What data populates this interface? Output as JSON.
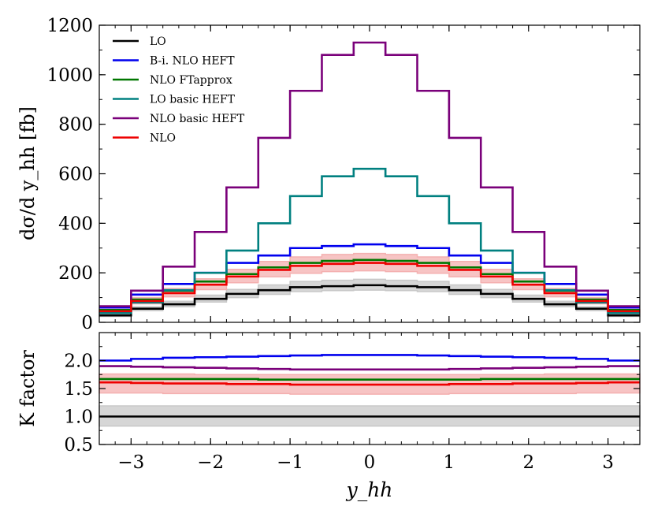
{
  "chart_data": [
    {
      "type": "line",
      "panel": "main",
      "step": "histogram",
      "ylabel": "dσ/d y_hh [fb]",
      "ylim": [
        0,
        1200
      ],
      "xlim": [
        -3.4,
        3.4
      ],
      "yticks": [
        0,
        200,
        400,
        600,
        800,
        1000,
        1200
      ],
      "ytick_labels": [
        "0",
        "200",
        "400",
        "600",
        "800",
        "1000",
        "1200"
      ],
      "legend": "top-left",
      "bin_edges": [
        -3.4,
        -3.0,
        -2.6,
        -2.2,
        -1.8,
        -1.4,
        -1.0,
        -0.6,
        -0.2,
        0.2,
        0.6,
        1.0,
        1.4,
        1.8,
        2.2,
        2.6,
        3.0,
        3.4
      ],
      "series": [
        {
          "name": "LO",
          "color": "#000000",
          "values": [
            28,
            55,
            73,
            95,
            115,
            130,
            142,
            146,
            150,
            146,
            142,
            130,
            115,
            95,
            73,
            55,
            28
          ],
          "band": [
            [
              24,
              33
            ],
            [
              47,
              63
            ],
            [
              63,
              85
            ],
            [
              82,
              110
            ],
            [
              100,
              133
            ],
            [
              113,
              151
            ],
            [
              124,
              165
            ],
            [
              128,
              170
            ],
            [
              130,
              174
            ],
            [
              128,
              170
            ],
            [
              124,
              165
            ],
            [
              113,
              151
            ],
            [
              100,
              133
            ],
            [
              82,
              110
            ],
            [
              63,
              85
            ],
            [
              47,
              63
            ],
            [
              24,
              33
            ]
          ],
          "band_color": "#c8c8c8"
        },
        {
          "name": "B-i. NLO HEFT",
          "color": "#0000ee",
          "values": [
            60,
            112,
            155,
            200,
            240,
            270,
            300,
            308,
            315,
            308,
            300,
            270,
            240,
            200,
            155,
            112,
            60
          ]
        },
        {
          "name": "NLO FTapprox",
          "color": "#007700",
          "values": [
            50,
            92,
            128,
            165,
            195,
            222,
            240,
            248,
            252,
            248,
            240,
            222,
            195,
            165,
            128,
            92,
            50
          ]
        },
        {
          "name": "LO basic HEFT",
          "color": "#008080",
          "values": [
            38,
            80,
            130,
            200,
            290,
            400,
            510,
            590,
            620,
            590,
            510,
            400,
            290,
            200,
            130,
            80,
            38
          ]
        },
        {
          "name": "NLO basic HEFT",
          "color": "#7a007a",
          "values": [
            65,
            128,
            225,
            365,
            545,
            745,
            935,
            1080,
            1130,
            1080,
            935,
            745,
            545,
            365,
            225,
            128,
            65
          ]
        },
        {
          "name": "NLO",
          "color": "#ee0000",
          "values": [
            45,
            86,
            118,
            152,
            185,
            212,
            228,
            236,
            240,
            236,
            228,
            212,
            185,
            152,
            118,
            86,
            45
          ],
          "band": [
            [
              39,
              52
            ],
            [
              75,
              100
            ],
            [
              103,
              137
            ],
            [
              132,
              176
            ],
            [
              160,
              214
            ],
            [
              184,
              246
            ],
            [
              198,
              264
            ],
            [
              205,
              274
            ],
            [
              208,
              278
            ],
            [
              205,
              274
            ],
            [
              198,
              264
            ],
            [
              184,
              246
            ],
            [
              160,
              214
            ],
            [
              132,
              176
            ],
            [
              103,
              137
            ],
            [
              75,
              100
            ],
            [
              39,
              52
            ]
          ],
          "band_color": "#f4b0b0"
        }
      ]
    },
    {
      "type": "line",
      "panel": "ratio",
      "step": "histogram",
      "xlabel": "y_hh",
      "ylabel": "K factor",
      "ylim": [
        0.5,
        2.5
      ],
      "xlim": [
        -3.4,
        3.4
      ],
      "yticks": [
        0.5,
        1.0,
        1.5,
        2.0
      ],
      "ytick_labels": [
        "0.5",
        "1.0",
        "1.5",
        "2.0"
      ],
      "xticks": [
        -3,
        -2,
        -1,
        0,
        1,
        2,
        3
      ],
      "xtick_labels": [
        "−3",
        "−2",
        "−1",
        "0",
        "1",
        "2",
        "3"
      ],
      "bin_edges": [
        -3.4,
        -3.0,
        -2.6,
        -2.2,
        -1.8,
        -1.4,
        -1.0,
        -0.6,
        -0.2,
        0.2,
        0.6,
        1.0,
        1.4,
        1.8,
        2.2,
        2.6,
        3.0,
        3.4
      ],
      "series": [
        {
          "name": "LO",
          "color": "#000000",
          "values": [
            1.0,
            1.0,
            1.0,
            1.0,
            1.0,
            1.0,
            1.0,
            1.0,
            1.0,
            1.0,
            1.0,
            1.0,
            1.0,
            1.0,
            1.0,
            1.0,
            1.0
          ],
          "band": [
            [
              0.83,
              1.19
            ],
            [
              0.83,
              1.19
            ],
            [
              0.83,
              1.19
            ],
            [
              0.83,
              1.19
            ],
            [
              0.83,
              1.19
            ],
            [
              0.83,
              1.19
            ],
            [
              0.83,
              1.19
            ],
            [
              0.83,
              1.19
            ],
            [
              0.83,
              1.19
            ],
            [
              0.83,
              1.19
            ],
            [
              0.83,
              1.19
            ],
            [
              0.83,
              1.19
            ],
            [
              0.83,
              1.19
            ],
            [
              0.83,
              1.19
            ],
            [
              0.83,
              1.19
            ],
            [
              0.83,
              1.19
            ],
            [
              0.83,
              1.19
            ]
          ],
          "band_color": "#c8c8c8"
        },
        {
          "name": "B-i. NLO HEFT",
          "color": "#0000ee",
          "values": [
            2.0,
            2.03,
            2.05,
            2.06,
            2.07,
            2.08,
            2.09,
            2.1,
            2.1,
            2.1,
            2.09,
            2.08,
            2.07,
            2.06,
            2.05,
            2.03,
            2.0
          ]
        },
        {
          "name": "NLO FTapprox",
          "color": "#007700",
          "values": [
            1.67,
            1.67,
            1.67,
            1.67,
            1.67,
            1.66,
            1.66,
            1.66,
            1.66,
            1.66,
            1.66,
            1.66,
            1.67,
            1.67,
            1.67,
            1.67,
            1.67
          ]
        },
        {
          "name": "NLO basic HEFT",
          "color": "#7a007a",
          "values": [
            1.9,
            1.89,
            1.88,
            1.87,
            1.86,
            1.85,
            1.84,
            1.84,
            1.84,
            1.84,
            1.84,
            1.85,
            1.86,
            1.87,
            1.88,
            1.89,
            1.9
          ]
        },
        {
          "name": "NLO",
          "color": "#ee0000",
          "values": [
            1.61,
            1.6,
            1.59,
            1.59,
            1.58,
            1.58,
            1.57,
            1.57,
            1.57,
            1.57,
            1.57,
            1.58,
            1.58,
            1.59,
            1.59,
            1.6,
            1.61
          ],
          "band": [
            [
              1.42,
              1.76
            ],
            [
              1.42,
              1.76
            ],
            [
              1.41,
              1.76
            ],
            [
              1.41,
              1.75
            ],
            [
              1.41,
              1.75
            ],
            [
              1.41,
              1.75
            ],
            [
              1.4,
              1.75
            ],
            [
              1.4,
              1.75
            ],
            [
              1.4,
              1.75
            ],
            [
              1.4,
              1.75
            ],
            [
              1.4,
              1.75
            ],
            [
              1.41,
              1.75
            ],
            [
              1.41,
              1.75
            ],
            [
              1.41,
              1.75
            ],
            [
              1.41,
              1.76
            ],
            [
              1.42,
              1.76
            ],
            [
              1.42,
              1.76
            ]
          ],
          "band_color": "#f4b0b0"
        }
      ]
    }
  ]
}
